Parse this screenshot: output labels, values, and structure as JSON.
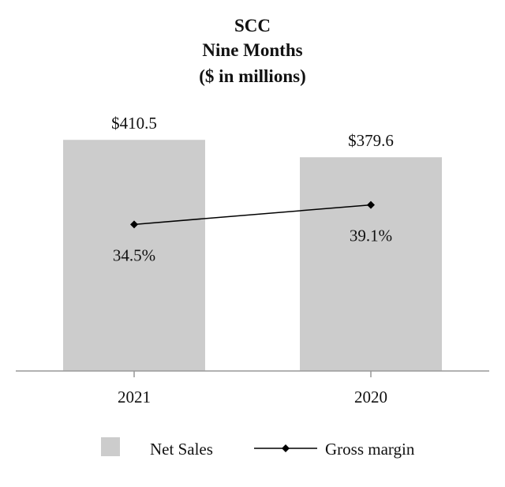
{
  "chart_data": {
    "type": "bar",
    "title_lines": [
      "SCC",
      "Nine Months",
      "($ in millions)"
    ],
    "categories": [
      "2021",
      "2020"
    ],
    "series": [
      {
        "name": "Net Sales",
        "kind": "bar",
        "values": [
          410.5,
          379.6
        ],
        "labels": [
          "$410.5",
          "$379.6"
        ],
        "color": "#cccccc"
      },
      {
        "name": "Gross margin",
        "kind": "line",
        "values": [
          34.5,
          39.1
        ],
        "labels": [
          "34.5%",
          "39.1%"
        ],
        "color": "#000000"
      }
    ],
    "bar_ylim": [
      0,
      415
    ],
    "line_ylim": [
      0,
      55
    ],
    "grid": false,
    "legend_position": "bottom"
  }
}
